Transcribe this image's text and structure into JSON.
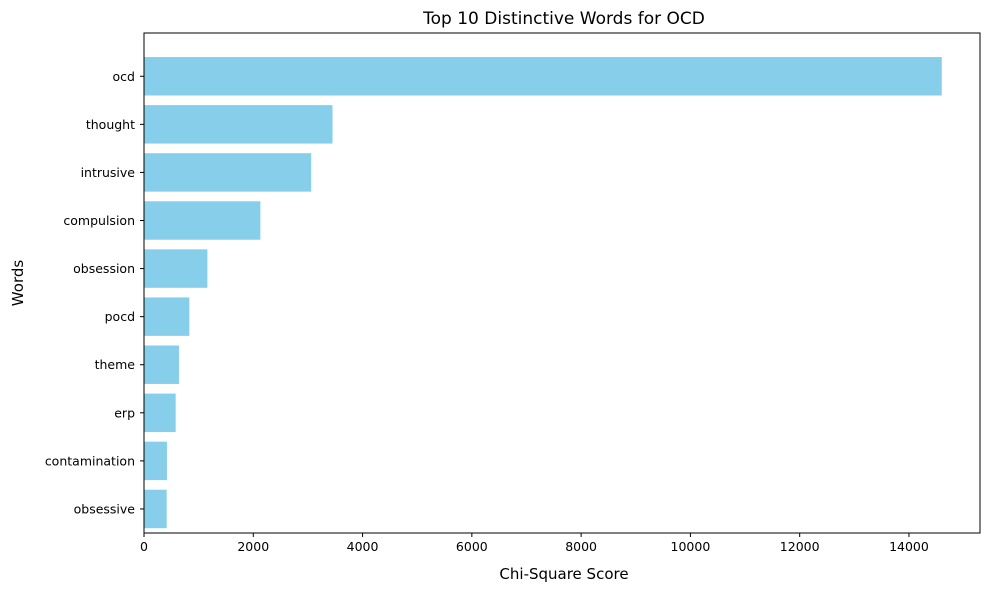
{
  "chart_data": {
    "type": "bar",
    "orientation": "horizontal",
    "title": "Top 10 Distinctive Words for OCD",
    "xlabel": "Chi-Square Score",
    "ylabel": "Words",
    "categories": [
      "ocd",
      "thought",
      "intrusive",
      "compulsion",
      "obsession",
      "pocd",
      "theme",
      "erp",
      "contamination",
      "obsessive"
    ],
    "values": [
      14600,
      3450,
      3060,
      2130,
      1160,
      830,
      640,
      580,
      420,
      415
    ],
    "xlim": [
      0,
      15300
    ],
    "xticks": [
      0,
      2000,
      4000,
      6000,
      8000,
      10000,
      12000,
      14000
    ],
    "xtick_labels": [
      "0",
      "2000",
      "4000",
      "6000",
      "8000",
      "10000",
      "12000",
      "14000"
    ],
    "grid": false,
    "bar_color": "#87CEEB"
  }
}
